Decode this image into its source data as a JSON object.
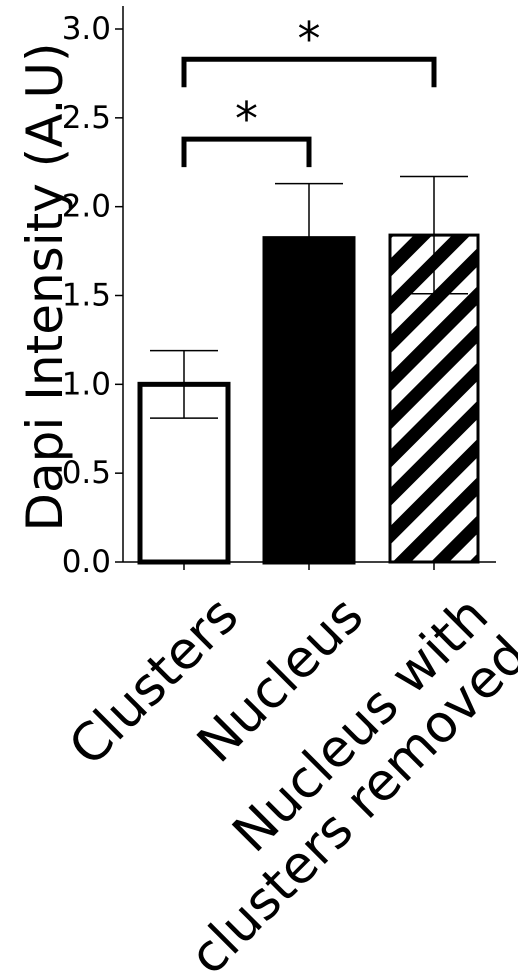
{
  "chart_data": {
    "type": "bar",
    "ylabel": "Dapi Intensity (A.U)",
    "ylim": [
      0,
      3.12
    ],
    "yticks": [
      0.0,
      0.5,
      1.0,
      1.5,
      2.0,
      2.5,
      3.0
    ],
    "ytick_labels": [
      "0.0",
      "0.5",
      "1.0",
      "1.5",
      "2.0",
      "2.5",
      "3.0"
    ],
    "categories": [
      "Clusters",
      "Nucleus",
      "Nucleus with clusters removed"
    ],
    "category_label_lines": [
      [
        "Clusters"
      ],
      [
        "Nucleus"
      ],
      [
        "Nucleus with",
        "clusters removed"
      ]
    ],
    "values": [
      1.0,
      1.82,
      1.84
    ],
    "errors": [
      0.19,
      0.31,
      0.33
    ],
    "fills": [
      "white",
      "black",
      "hatched"
    ],
    "significance": [
      {
        "from": 0,
        "to": 1,
        "label": "*",
        "y": 2.38
      },
      {
        "from": 0,
        "to": 2,
        "label": "*",
        "y": 2.83
      }
    ],
    "grid": false
  },
  "colors": {
    "ink": "#000000",
    "background": "#ffffff"
  }
}
